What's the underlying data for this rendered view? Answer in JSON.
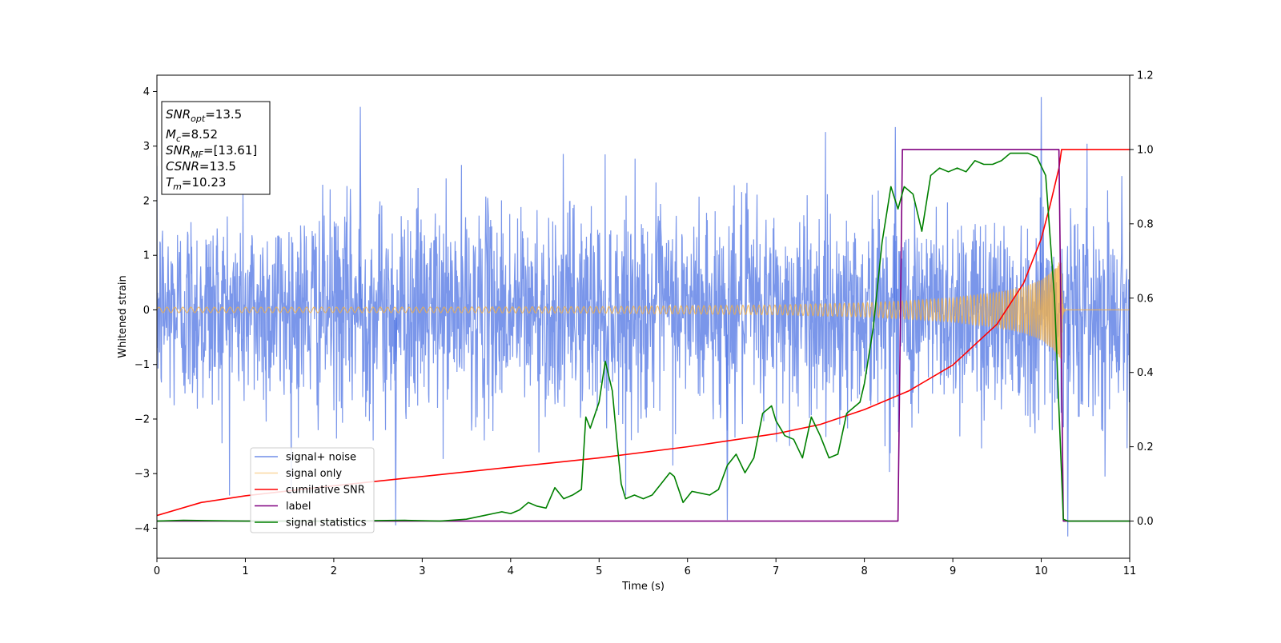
{
  "chart_data": {
    "type": "line",
    "xlabel": "Time (s)",
    "ylabel": "Whitened strain",
    "xlim": [
      0,
      11
    ],
    "ylim_left": [
      -4.55,
      4.3
    ],
    "ylim_right": [
      -0.1,
      1.2
    ],
    "x_ticks": [
      0,
      1,
      2,
      3,
      4,
      5,
      6,
      7,
      8,
      9,
      10,
      11
    ],
    "y_ticks_left": [
      -4,
      -3,
      -2,
      -1,
      0,
      1,
      2,
      3,
      4
    ],
    "y_ticks_right": [
      "0.0",
      "0.2",
      "0.4",
      "0.6",
      "0.8",
      "1.0",
      "1.2"
    ],
    "y_ticks_right_values": [
      0.0,
      0.2,
      0.4,
      0.6,
      0.8,
      1.0,
      1.2
    ],
    "grid": false,
    "legend_position": "lower-left",
    "annotation": {
      "lines": [
        {
          "sym": "SNR",
          "sub": "opt",
          "text": "=13.5"
        },
        {
          "sym": "M",
          "sub": "c",
          "text": "=8.52"
        },
        {
          "sym": "SNR",
          "sub": "MF",
          "text": "=[13.61]"
        },
        {
          "sym": "CSNR",
          "sub": "",
          "text": "=13.5"
        },
        {
          "sym": "T",
          "sub": "m",
          "text": "=10.23"
        }
      ]
    },
    "series": [
      {
        "name": "signal+ noise",
        "axis": "left",
        "color": "#4169e1",
        "kind": "noise",
        "sigma": 0.95,
        "x_range": [
          0,
          11
        ],
        "peaks": [
          [
            2.3,
            3.72
          ],
          [
            2.7,
            -3.95
          ],
          [
            10.0,
            3.9
          ],
          [
            10.3,
            -4.15
          ],
          [
            6.45,
            -3.85
          ],
          [
            8.35,
            3.35
          ]
        ]
      },
      {
        "name": "signal only",
        "axis": "left",
        "color": "#f5b041",
        "kind": "chirp",
        "envelope": [
          [
            0,
            0.05
          ],
          [
            3,
            0.05
          ],
          [
            5,
            0.06
          ],
          [
            7,
            0.09
          ],
          [
            8,
            0.13
          ],
          [
            8.5,
            0.17
          ],
          [
            9,
            0.22
          ],
          [
            9.5,
            0.32
          ],
          [
            9.8,
            0.42
          ],
          [
            10.0,
            0.55
          ],
          [
            10.15,
            0.75
          ],
          [
            10.23,
            0.95
          ]
        ],
        "merger_time": 10.23
      },
      {
        "name": "cumilative SNR",
        "axis": "right",
        "color": "#ff0000",
        "x": [
          0,
          0.5,
          1,
          2,
          3,
          4,
          5,
          6,
          7,
          7.5,
          8,
          8.5,
          9,
          9.5,
          9.8,
          10.0,
          10.1,
          10.2,
          10.23,
          11
        ],
        "y": [
          0.015,
          0.05,
          0.068,
          0.095,
          0.12,
          0.145,
          0.17,
          0.2,
          0.235,
          0.26,
          0.3,
          0.35,
          0.42,
          0.53,
          0.64,
          0.76,
          0.85,
          0.95,
          1.0,
          1.0
        ]
      },
      {
        "name": "label",
        "axis": "right",
        "color": "#800080",
        "x": [
          0,
          8.38,
          8.43,
          10.2,
          10.25,
          11
        ],
        "y": [
          0.0,
          0.0,
          1.0,
          1.0,
          0.0,
          0.0
        ]
      },
      {
        "name": "signal statistics",
        "axis": "right",
        "color": "#008000",
        "x": [
          0,
          0.3,
          1,
          2,
          2.8,
          3.2,
          3.5,
          3.7,
          3.8,
          3.9,
          4.0,
          4.1,
          4.2,
          4.3,
          4.4,
          4.5,
          4.6,
          4.7,
          4.8,
          4.85,
          4.9,
          5.0,
          5.07,
          5.15,
          5.2,
          5.25,
          5.3,
          5.4,
          5.5,
          5.6,
          5.7,
          5.8,
          5.85,
          5.95,
          6.05,
          6.15,
          6.25,
          6.35,
          6.45,
          6.55,
          6.65,
          6.75,
          6.85,
          6.95,
          7.0,
          7.1,
          7.2,
          7.3,
          7.4,
          7.5,
          7.6,
          7.7,
          7.8,
          7.9,
          7.95,
          8.0,
          8.1,
          8.2,
          8.3,
          8.38,
          8.45,
          8.55,
          8.65,
          8.75,
          8.85,
          8.95,
          9.05,
          9.15,
          9.25,
          9.35,
          9.45,
          9.55,
          9.65,
          9.75,
          9.85,
          9.95,
          10.05,
          10.15,
          10.25,
          10.3,
          10.5,
          11
        ],
        "y": [
          0.0,
          0.002,
          0.0,
          0.0,
          0.002,
          0.0,
          0.005,
          0.015,
          0.02,
          0.025,
          0.02,
          0.03,
          0.05,
          0.04,
          0.035,
          0.09,
          0.06,
          0.07,
          0.085,
          0.28,
          0.25,
          0.32,
          0.43,
          0.35,
          0.22,
          0.1,
          0.06,
          0.07,
          0.06,
          0.07,
          0.1,
          0.13,
          0.12,
          0.05,
          0.08,
          0.075,
          0.07,
          0.085,
          0.15,
          0.18,
          0.13,
          0.17,
          0.29,
          0.31,
          0.27,
          0.23,
          0.22,
          0.17,
          0.28,
          0.23,
          0.17,
          0.18,
          0.29,
          0.31,
          0.32,
          0.37,
          0.52,
          0.75,
          0.9,
          0.84,
          0.9,
          0.88,
          0.78,
          0.93,
          0.95,
          0.94,
          0.95,
          0.94,
          0.97,
          0.96,
          0.96,
          0.97,
          0.99,
          0.99,
          0.99,
          0.98,
          0.93,
          0.6,
          0.005,
          0.0,
          0.0,
          0.0
        ]
      }
    ]
  }
}
